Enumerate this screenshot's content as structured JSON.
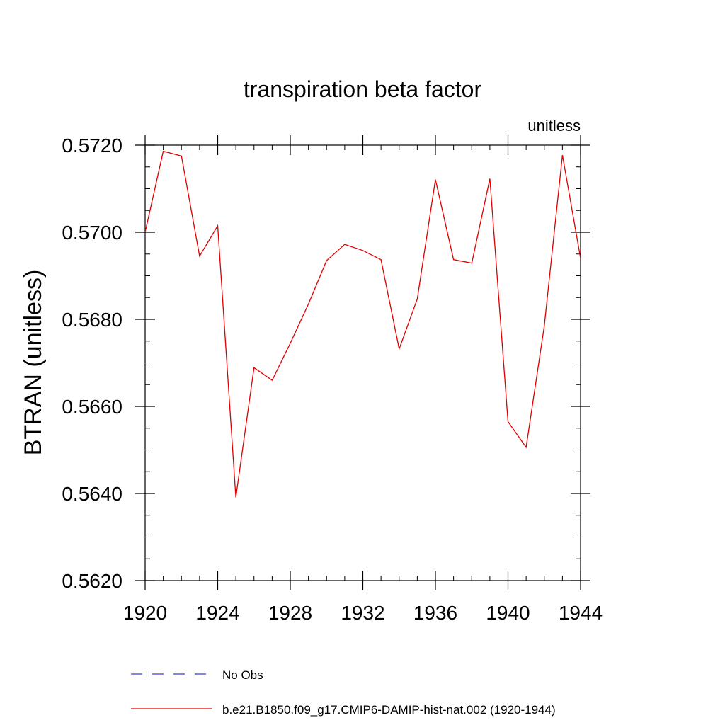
{
  "chart_data": {
    "type": "line",
    "title": "transpiration beta factor",
    "units_label": "unitless",
    "ylabel": "BTRAN  (unitless)",
    "xlabel": "",
    "xlim": [
      1920,
      1944
    ],
    "ylim": [
      0.562,
      0.572
    ],
    "x_ticks": [
      1920,
      1924,
      1928,
      1932,
      1936,
      1940,
      1944
    ],
    "x_minor_step": 1,
    "y_ticks": [
      0.562,
      0.564,
      0.566,
      0.568,
      0.57,
      0.572
    ],
    "y_tick_labels": [
      "0.5620",
      "0.5640",
      "0.5660",
      "0.5680",
      "0.5700",
      "0.5720"
    ],
    "y_minor_step": 0.0005,
    "grid": false,
    "legend_position": "bottom",
    "series": [
      {
        "name": "No Obs",
        "color": "#3b3bd6",
        "dash": "dashed",
        "x": [],
        "y": []
      },
      {
        "name": "b.e21.B1850.f09_g17.CMIP6-DAMIP-hist-nat.002 (1920-1944)",
        "color": "#e00000",
        "dash": "solid",
        "x": [
          1920,
          1921,
          1922,
          1923,
          1924,
          1925,
          1926,
          1927,
          1928,
          1929,
          1930,
          1931,
          1932,
          1933,
          1934,
          1935,
          1936,
          1937,
          1938,
          1939,
          1940,
          1941,
          1942,
          1943,
          1944
        ],
        "y": [
          0.57,
          0.57186,
          0.57175,
          0.56945,
          0.57015,
          0.56391,
          0.56689,
          0.5666,
          0.56745,
          0.56835,
          0.56935,
          0.56972,
          0.56958,
          0.56937,
          0.56732,
          0.56847,
          0.57121,
          0.56937,
          0.56929,
          0.57123,
          0.56565,
          0.56506,
          0.56785,
          0.57177,
          0.5694
        ]
      }
    ]
  }
}
